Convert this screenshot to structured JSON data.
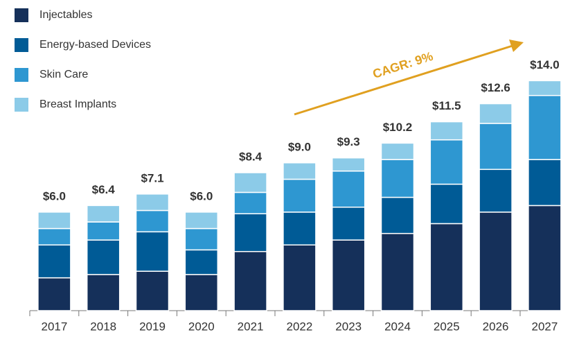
{
  "chart_data": {
    "type": "stacked_bar",
    "categories": [
      "2017",
      "2018",
      "2019",
      "2020",
      "2021",
      "2022",
      "2023",
      "2024",
      "2025",
      "2026",
      "2027"
    ],
    "series": [
      {
        "name": "Injectables",
        "color": "#15305a",
        "values": [
          2.0,
          2.2,
          2.4,
          2.2,
          3.6,
          4.0,
          4.3,
          4.7,
          5.3,
          6.0,
          6.4
        ]
      },
      {
        "name": "Energy-based Devices",
        "color": "#005b96",
        "values": [
          2.0,
          2.1,
          2.4,
          1.5,
          2.3,
          2.0,
          2.0,
          2.2,
          2.4,
          2.6,
          2.8
        ]
      },
      {
        "name": "Skin Care",
        "color": "#2e97d1",
        "values": [
          1.0,
          1.1,
          1.3,
          1.3,
          1.3,
          2.0,
          2.2,
          2.3,
          2.7,
          2.8,
          3.9
        ]
      },
      {
        "name": "Breast Implants",
        "color": "#8ccbe8",
        "values": [
          1.0,
          1.0,
          1.0,
          1.0,
          1.2,
          1.0,
          0.8,
          1.0,
          1.1,
          1.2,
          0.9
        ]
      }
    ],
    "totals": [
      6.0,
      6.4,
      7.1,
      6.0,
      8.4,
      9.0,
      9.3,
      10.2,
      11.5,
      12.6,
      14.0
    ],
    "total_labels": [
      "$6.0",
      "$6.4",
      "$7.1",
      "$6.0",
      "$8.4",
      "$9.0",
      "$9.3",
      "$10.2",
      "$11.5",
      "$12.6",
      "$14.0"
    ],
    "annotation": "CAGR: 9%",
    "annotation_color": "#e0a020",
    "ylim": [
      0,
      16
    ]
  }
}
